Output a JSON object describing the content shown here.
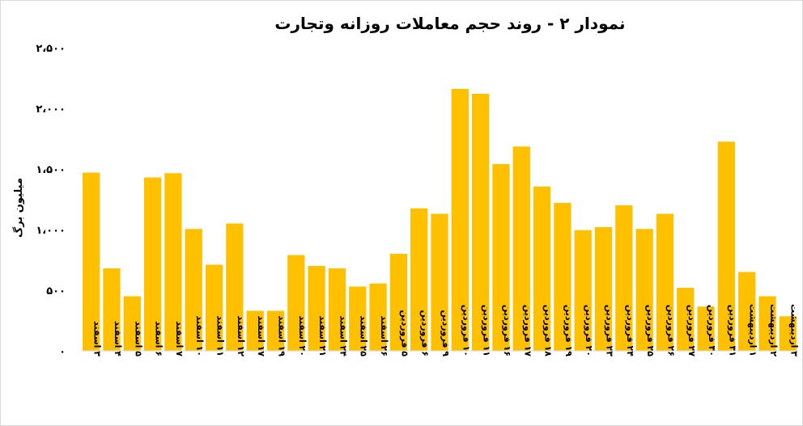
{
  "chart_data": {
    "type": "bar",
    "title": "نمودار ۲ - روند حجم معاملات روزانه وتجارت",
    "xlabel": "",
    "ylabel": "میلیون برگ",
    "ylim": [
      0,
      2500
    ],
    "yticks": [
      0,
      500,
      1000,
      1500,
      2000,
      2500
    ],
    "ytick_labels": [
      "۰",
      "۵۰۰",
      "۱،۰۰۰",
      "۱،۵۰۰",
      "۲،۰۰۰",
      "۲،۵۰۰"
    ],
    "grid": false,
    "legend": "none",
    "bar_color": "#FFC000",
    "categories": [
      "۳ اسفند",
      "۴ اسفند",
      "۵ اسفند",
      "۶ اسفند",
      "۷ اسفند",
      "۱۰ اسفند",
      "۱۱ اسفند",
      "۱۲ اسفند",
      "۱۷ اسفند",
      "۱۹ اسفند",
      "۲۰ اسفند",
      "۲۱ اسفند",
      "۲۴ اسفند",
      "۲۵ اسفند",
      "۲۶ اسفند",
      "۵ فروردین",
      "۶ فروردین",
      "۹ فروردین",
      "۱۰ فروردین",
      "۱۱ فروردین",
      "۱۶ فروردین",
      "۱۷ فروردین",
      "۱۸ فروردین",
      "۱۹ فروردین",
      "۲۰ فروردین",
      "۲۳ فروردین",
      "۲۴ فروردین",
      "۲۵ فروردین",
      "۲۶ فروردین",
      "۲۷ فروردین",
      "۳۰ فروردین",
      "۳۱ فروردین",
      "۱ اردیبهشت",
      "۲ اردیبهشت",
      "۳ اردیبهشت"
    ],
    "values": [
      1470,
      680,
      450,
      1430,
      1465,
      1005,
      710,
      1050,
      330,
      330,
      790,
      700,
      680,
      530,
      555,
      800,
      1175,
      1130,
      2160,
      2120,
      1540,
      1685,
      1355,
      1220,
      995,
      1020,
      1200,
      1005,
      1130,
      520,
      365,
      1725,
      650,
      450,
      285
    ]
  }
}
